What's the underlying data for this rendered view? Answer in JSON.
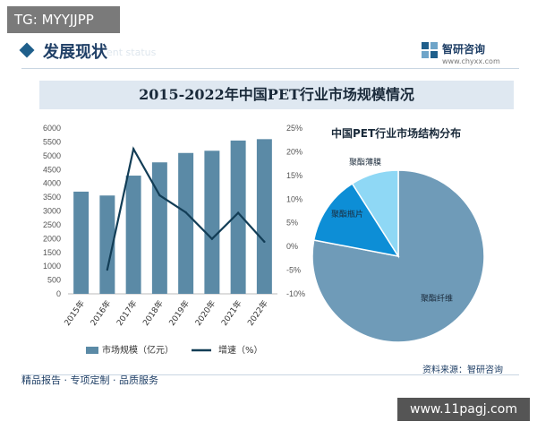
{
  "watermark_tag": "TG: MYYJJPP",
  "header": {
    "title": "发展现状",
    "ghost_text": "ent status"
  },
  "logo": {
    "name": "智研咨询",
    "url": "www.chyxx.com"
  },
  "footer": {
    "left": "精品报告 · 专项定制 · 品质服务",
    "source": "资料来源：智研咨询"
  },
  "watermark_url": "www.11pagj.com",
  "colors": {
    "bar": "#5b8aa6",
    "line": "#123d56",
    "pie_main": "#6f9bb8",
    "pie_slice2": "#0d8ed6",
    "pie_slice3": "#8fd8f5"
  },
  "chart_data": [
    {
      "type": "bar",
      "title": "2015-2022年中国PET行业市场规模情况",
      "categories": [
        "2015年",
        "2016年",
        "2017年",
        "2018年",
        "2019年",
        "2020年",
        "2021年",
        "2022年"
      ],
      "left_ticks": [
        "0",
        "500",
        "1000",
        "1500",
        "2000",
        "2500",
        "3000",
        "3500",
        "4000",
        "4500",
        "5000",
        "5500",
        "6000"
      ],
      "right_ticks": [
        "-10%",
        "-5%",
        "0%",
        "5%",
        "10%",
        "15%",
        "20%",
        "25%"
      ],
      "ylim": [
        0,
        6000
      ],
      "y2lim": [
        -10,
        25
      ],
      "series": [
        {
          "name": "市场规模（亿元）",
          "type": "bar",
          "axis": "left",
          "values": [
            3700,
            3560,
            4280,
            4760,
            5100,
            5180,
            5550,
            5600
          ]
        },
        {
          "name": "增速（%）",
          "type": "line",
          "axis": "right",
          "values": [
            null,
            -4.9,
            20.6,
            10.8,
            7.2,
            1.6,
            7.1,
            1.0
          ]
        }
      ],
      "legend": "bottom"
    },
    {
      "type": "pie",
      "title": "中国PET行业市场结构分布",
      "slices": [
        {
          "label": "聚酯纤维",
          "value": 78
        },
        {
          "label": "聚酯瓶片",
          "value": 13
        },
        {
          "label": "聚酯薄膜",
          "value": 9
        }
      ]
    }
  ]
}
